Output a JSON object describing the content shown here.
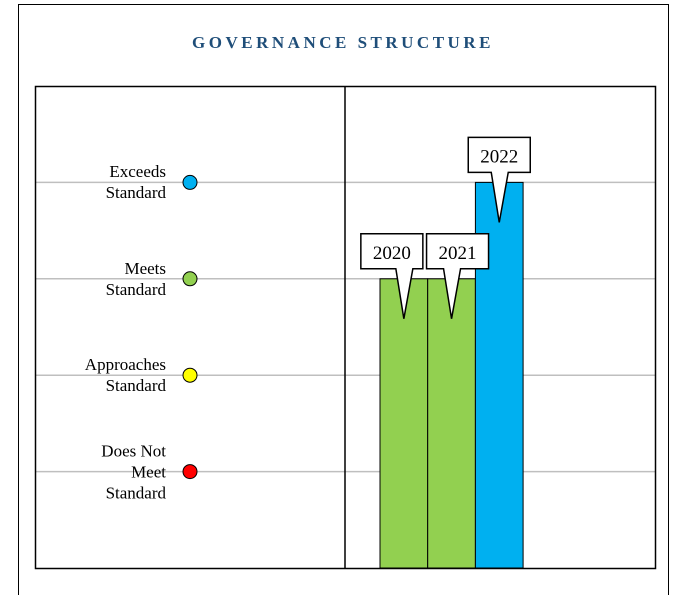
{
  "chart_data": {
    "type": "bar",
    "title": "GOVERNANCE STRUCTURE",
    "categories": [
      "2020",
      "2021",
      "2022"
    ],
    "values": [
      3,
      3,
      4
    ],
    "colors": [
      "#92d050",
      "#92d050",
      "#00b0f0"
    ],
    "ylim": [
      0,
      5
    ],
    "yticks": [
      {
        "value": 1,
        "label": "Does Not\nMeet\nStandard"
      },
      {
        "value": 2,
        "label": "Approaches\nStandard"
      },
      {
        "value": 3,
        "label": "Meets\nStandard"
      },
      {
        "value": 4,
        "label": "Exceeds\nStandard"
      }
    ],
    "ytick_colors": [
      "#ff0000",
      "#ffff00",
      "#92d050",
      "#00b0f0"
    ],
    "grid": true
  }
}
